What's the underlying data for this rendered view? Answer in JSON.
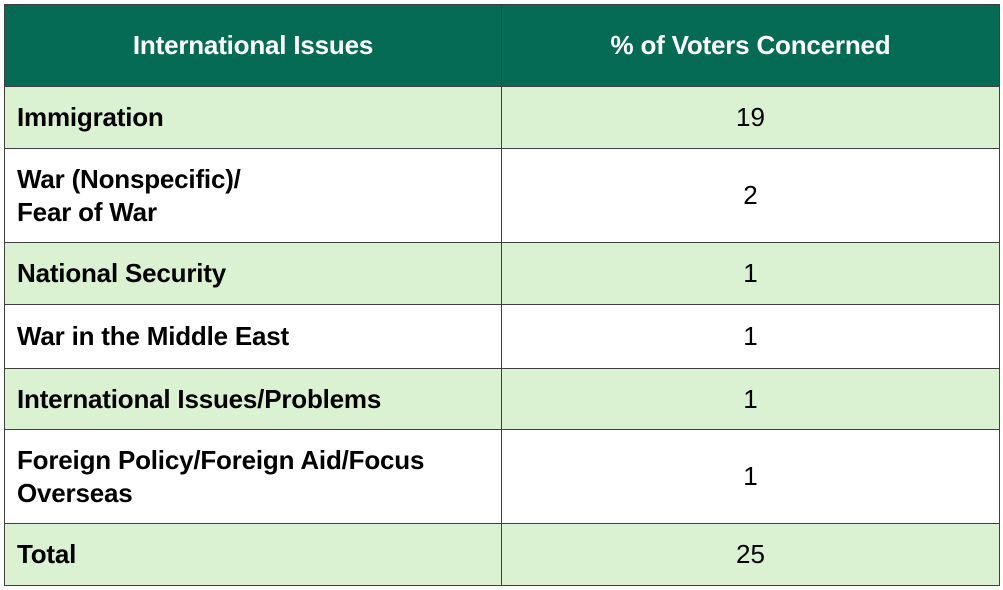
{
  "chart_data": {
    "type": "table",
    "columns": [
      "International Issues",
      "% of Voters Concerned"
    ],
    "rows": [
      {
        "issue": "Immigration",
        "value": "19"
      },
      {
        "issue": "War (Nonspecific)/\nFear of War",
        "value": "2"
      },
      {
        "issue": "National Security",
        "value": "1"
      },
      {
        "issue": "War in the Middle East",
        "value": "1"
      },
      {
        "issue": "International Issues/Problems",
        "value": "1"
      },
      {
        "issue": "Foreign Policy/Foreign Aid/Focus\nOverseas",
        "value": "1"
      },
      {
        "issue": "Total",
        "value": "25"
      }
    ]
  },
  "colors": {
    "header_bg": "#066b55",
    "header_text": "#ffffff",
    "shaded_row_bg": "#daf2d1",
    "plain_row_bg": "#ffffff",
    "border": "#3f3f3f"
  }
}
